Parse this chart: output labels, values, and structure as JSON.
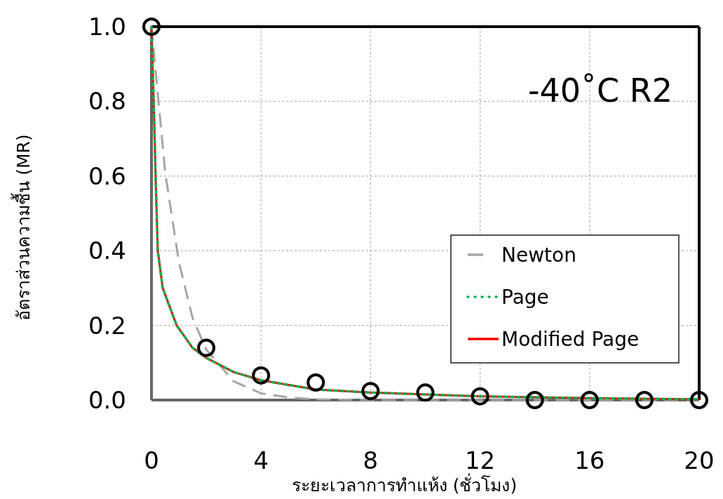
{
  "chart_data": {
    "type": "line",
    "xlabel": "ระยะเวลาการทำแห้ง (ชั่วโมง)",
    "ylabel": "อัตราส่วนความชื้น (MR)",
    "annotations": [
      "-40˚C R2"
    ],
    "xlim": [
      0,
      20
    ],
    "ylim": [
      0,
      1
    ],
    "xticks": [
      0,
      4,
      8,
      12,
      16,
      20
    ],
    "yticks": [
      {
        "value": 0,
        "label": "0.0"
      },
      {
        "value": 0.2,
        "label": "0.2"
      },
      {
        "value": 0.4,
        "label": "0.4"
      },
      {
        "value": 0.6,
        "label": "0.6"
      },
      {
        "value": 0.8,
        "label": "0.8"
      },
      {
        "value": 1,
        "label": "1.0"
      }
    ],
    "grid": true,
    "legend": "right",
    "series": [
      {
        "name": "Newton",
        "color": "#a6a6a6",
        "line_style": "dashed",
        "marker": "none",
        "x": [
          0,
          0.5,
          1,
          1.5,
          2,
          3,
          4,
          5,
          6,
          8,
          20
        ],
        "values": [
          1,
          0.61,
          0.37,
          0.22,
          0.135,
          0.05,
          0.018,
          0.007,
          0.002,
          0,
          0
        ]
      },
      {
        "name": "Page",
        "color": "#00b050",
        "line_style": "dotted",
        "marker": "none",
        "x": [
          0,
          0.1,
          0.15,
          0.23,
          0.41,
          0.92,
          1.5,
          2,
          3,
          4,
          6,
          8,
          10,
          12,
          16,
          20
        ],
        "values": [
          1,
          0.75,
          0.6,
          0.4,
          0.3,
          0.2,
          0.14,
          0.113,
          0.075,
          0.053,
          0.028,
          0.02,
          0.015,
          0.01,
          0.005,
          0.002
        ]
      },
      {
        "name": "Modified Page",
        "color": "#ff0000",
        "line_style": "solid",
        "marker": "none",
        "x": [
          0,
          0.1,
          0.15,
          0.23,
          0.41,
          0.92,
          1.5,
          2,
          3,
          4,
          6,
          8,
          10,
          12,
          16,
          20
        ],
        "values": [
          1,
          0.75,
          0.6,
          0.4,
          0.3,
          0.2,
          0.14,
          0.113,
          0.075,
          0.053,
          0.028,
          0.02,
          0.015,
          0.01,
          0.005,
          0.002
        ]
      },
      {
        "type": "scatter",
        "color": "#000000",
        "marker": "circle",
        "x": [
          0,
          2,
          4,
          6,
          8,
          10,
          12,
          14,
          16,
          18,
          20
        ],
        "values": [
          1,
          0.14,
          0.066,
          0.047,
          0.024,
          0.02,
          0.01,
          0,
          0,
          0,
          0
        ]
      }
    ]
  }
}
